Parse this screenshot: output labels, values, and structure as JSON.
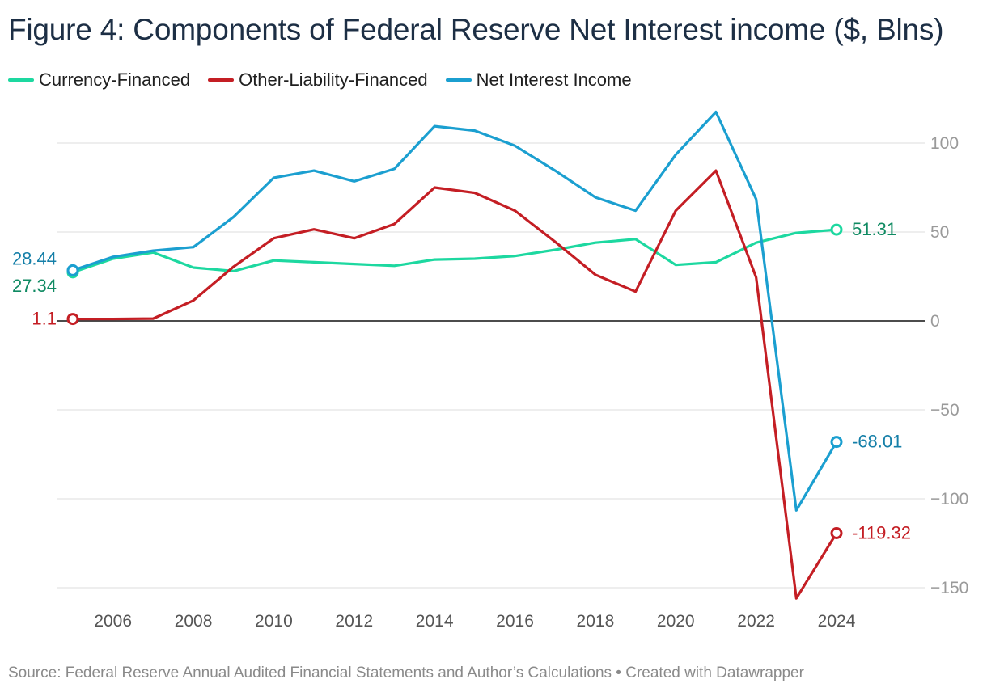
{
  "title": "Figure 4: Components of Federal Reserve Net Interest income ($, Blns)",
  "source": "Source: Federal Reserve Annual Audited Financial Statements and Author’s Calculations • Created with Datawrapper",
  "chart_data": {
    "type": "line",
    "title": "Figure 4: Components of Federal Reserve Net Interest income ($, Blns)",
    "xlabel": "",
    "ylabel": "",
    "xlim": [
      2005,
      2024
    ],
    "ylim": [
      -155,
      115
    ],
    "x_ticks": [
      {
        "value": 2006,
        "label": "2006"
      },
      {
        "value": 2008,
        "label": "2008"
      },
      {
        "value": 2010,
        "label": "2010"
      },
      {
        "value": 2012,
        "label": "2012"
      },
      {
        "value": 2014,
        "label": "2014"
      },
      {
        "value": 2016,
        "label": "2016"
      },
      {
        "value": 2018,
        "label": "2018"
      },
      {
        "value": 2020,
        "label": "2020"
      },
      {
        "value": 2022,
        "label": "2022"
      },
      {
        "value": 2024,
        "label": "2024"
      }
    ],
    "y_ticks": [
      {
        "value": 100,
        "label": "100"
      },
      {
        "value": 50,
        "label": "50"
      },
      {
        "value": 0,
        "label": "0"
      },
      {
        "value": -50,
        "label": "−50"
      },
      {
        "value": -100,
        "label": "−100"
      },
      {
        "value": -150,
        "label": "−150"
      }
    ],
    "grid": true,
    "legend_position": "top-left",
    "x": [
      2005,
      2006,
      2007,
      2008,
      2009,
      2010,
      2011,
      2012,
      2013,
      2014,
      2015,
      2016,
      2017,
      2018,
      2019,
      2020,
      2021,
      2022,
      2023,
      2024
    ],
    "series": [
      {
        "name": "Currency-Financed",
        "color": "#1dd8a0",
        "label_color": "#0f8a62",
        "values": [
          27.34,
          35,
          38.5,
          30,
          28,
          34,
          33,
          32,
          31,
          34.5,
          35,
          36.5,
          40,
          44,
          46,
          31.5,
          33,
          44,
          49.5,
          51.31
        ],
        "start_label": "27.34",
        "end_label": "51.31"
      },
      {
        "name": "Other-Liability-Financed",
        "color": "#c41e24",
        "label_color": "#c41e24",
        "values": [
          1.1,
          1.1,
          1.3,
          11.5,
          30.5,
          46.5,
          51.5,
          46.5,
          54.5,
          75,
          72,
          62,
          44.5,
          26,
          16.5,
          62,
          84.5,
          24.5,
          -156,
          -119.32
        ],
        "start_label": "1.1",
        "end_label": "-119.32"
      },
      {
        "name": "Net Interest Income",
        "color": "#1b9fd0",
        "label_color": "#157fa8",
        "values": [
          28.44,
          36,
          39.5,
          41.5,
          58.5,
          80.5,
          84.5,
          78.5,
          85.5,
          109.5,
          107,
          98.5,
          84.5,
          69.5,
          62,
          93.5,
          117.5,
          68.5,
          -106.5,
          -68.01
        ],
        "start_label": "28.44",
        "end_label": "-68.01"
      }
    ]
  }
}
